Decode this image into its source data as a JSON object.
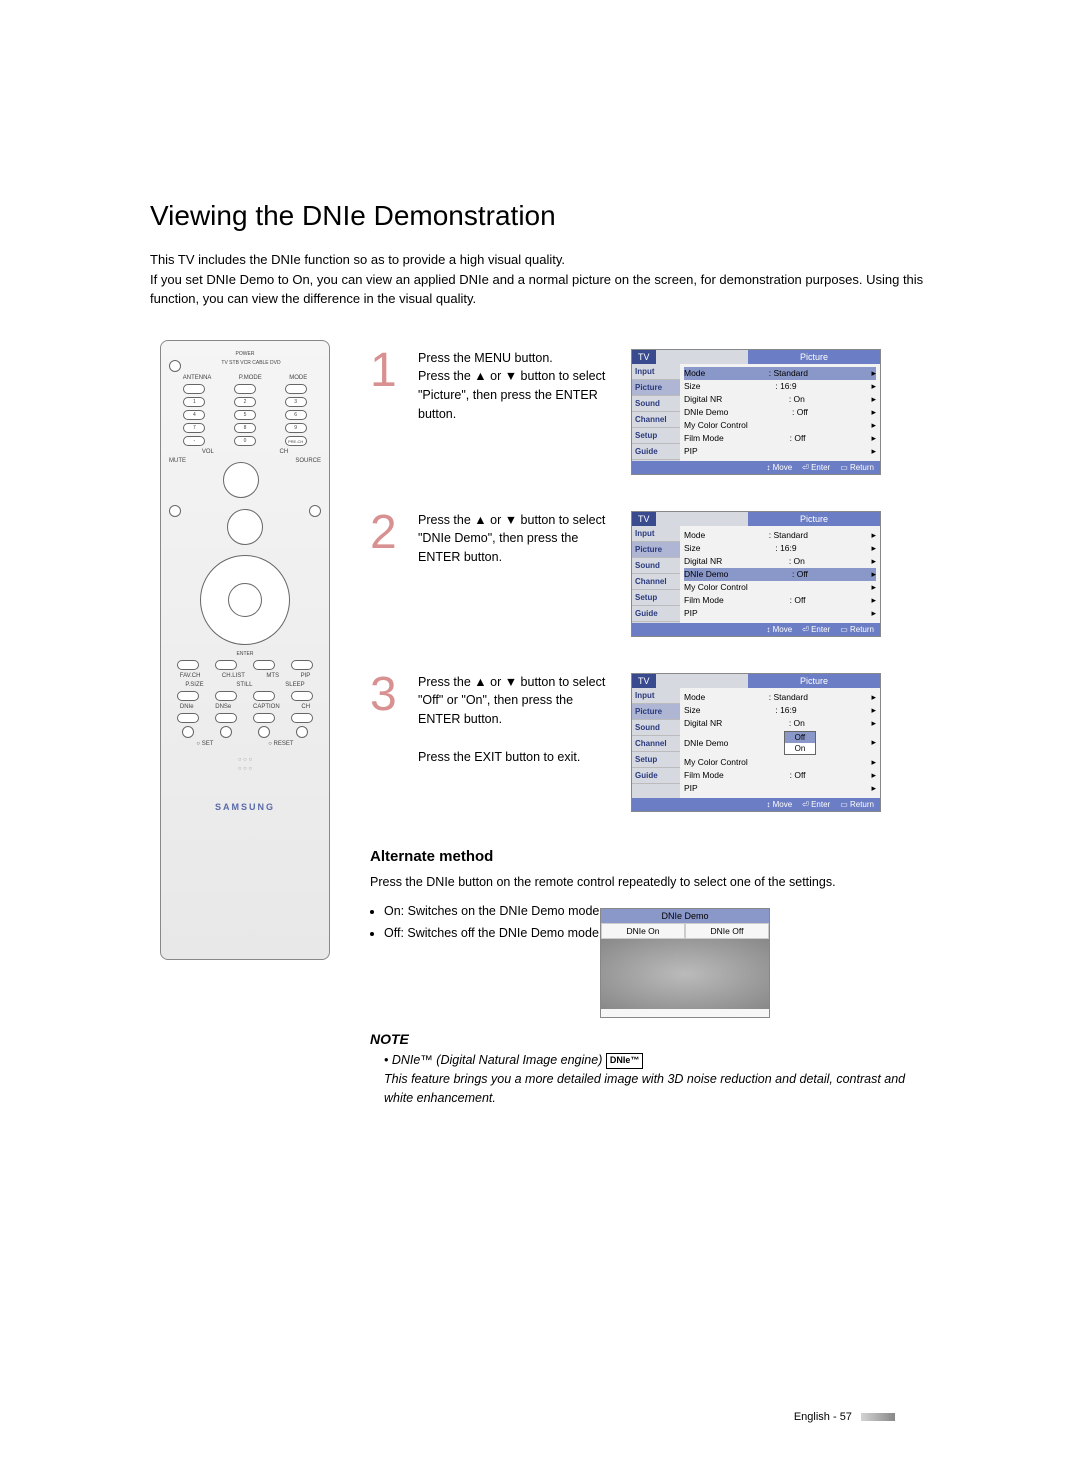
{
  "title": "Viewing the DNIe Demonstration",
  "intro": "This TV includes the DNIe function so as to provide a high visual quality.\nIf you set DNIe Demo to On, you can view an applied DNIe and a normal picture on the screen, for demonstration purposes. Using this function, you can view the difference in the visual quality.",
  "remote": {
    "top_label": "POWER",
    "mode_row": "TV  STB  VCR  CABLE  DVD",
    "row_labels": [
      "ANTENNA",
      "P.MODE",
      "MODE"
    ],
    "numbers": [
      "1",
      "2",
      "3",
      "4",
      "5",
      "6",
      "7",
      "8",
      "9",
      "-",
      "0",
      "PRE-CH"
    ],
    "vol": "VOL",
    "ch": "CH",
    "mute": "MUTE",
    "source": "SOURCE",
    "enter": "ENTER",
    "bottom_row1": [
      "FAV.CH",
      "CH.LIST",
      "MTS",
      "PIP"
    ],
    "bottom_row2": [
      "P.SIZE",
      "STILL",
      "SLEEP"
    ],
    "bottom_row3": [
      "DNIe",
      "DNSe",
      "CAPTION",
      "CH"
    ],
    "set": "SET",
    "reset": "RESET",
    "brand": "SAMSUNG"
  },
  "steps": [
    {
      "num": "1",
      "text": "Press the MENU button.\nPress the ▲ or ▼ button to select \"Picture\", then press the ENTER button.",
      "osd": {
        "corner": "TV",
        "title": "Picture",
        "side": [
          "Input",
          "Picture",
          "Sound",
          "Channel",
          "Setup",
          "Guide"
        ],
        "side_active": 1,
        "highlight": 0,
        "lines": [
          [
            "Mode",
            ": Standard"
          ],
          [
            "Size",
            ": 16:9"
          ],
          [
            "Digital NR",
            ": On"
          ],
          [
            "DNIe Demo",
            ": Off"
          ],
          [
            "My Color Control",
            ""
          ],
          [
            "Film Mode",
            ": Off"
          ],
          [
            "PIP",
            ""
          ]
        ],
        "foot": [
          "Move",
          "Enter",
          "Return"
        ]
      }
    },
    {
      "num": "2",
      "text": "Press the ▲ or ▼ button to select \"DNIe Demo\", then press the ENTER button.",
      "osd": {
        "corner": "TV",
        "title": "Picture",
        "side": [
          "Input",
          "Picture",
          "Sound",
          "Channel",
          "Setup",
          "Guide"
        ],
        "side_active": 1,
        "highlight": 3,
        "lines": [
          [
            "Mode",
            ": Standard"
          ],
          [
            "Size",
            ": 16:9"
          ],
          [
            "Digital NR",
            ": On"
          ],
          [
            "DNIe Demo",
            ": Off"
          ],
          [
            "My Color Control",
            ""
          ],
          [
            "Film Mode",
            ": Off"
          ],
          [
            "PIP",
            ""
          ]
        ],
        "foot": [
          "Move",
          "Enter",
          "Return"
        ]
      }
    },
    {
      "num": "3",
      "text": "Press the ▲ or ▼ button to select \"Off\" or \"On\", then press the ENTER button.\n\nPress the EXIT button to exit.",
      "osd": {
        "corner": "TV",
        "title": "Picture",
        "side": [
          "Input",
          "Picture",
          "Sound",
          "Channel",
          "Setup",
          "Guide"
        ],
        "side_active": 1,
        "highlight": -1,
        "dropdown": {
          "row": 3,
          "options": [
            "Off",
            "On"
          ],
          "sel": 0
        },
        "lines": [
          [
            "Mode",
            ": Standard"
          ],
          [
            "Size",
            ": 16:9"
          ],
          [
            "Digital NR",
            ": On"
          ],
          [
            "DNIe Demo",
            ""
          ],
          [
            "My Color Control",
            ""
          ],
          [
            "Film Mode",
            ": Off"
          ],
          [
            "PIP",
            ""
          ]
        ],
        "foot": [
          "Move",
          "Enter",
          "Return"
        ]
      }
    }
  ],
  "alternate": {
    "head": "Alternate method",
    "text": "Press the DNIe button on the remote control repeatedly to select one of the settings.",
    "bullets": [
      "On: Switches on the DNIe Demo mode.",
      "Off: Switches off the DNIe Demo mode."
    ],
    "box": {
      "title": "DNIe Demo",
      "left": "DNIe On",
      "right": "DNIe Off"
    }
  },
  "note": {
    "head": "NOTE",
    "line1": "• DNIe™ (Digital Natural Image engine)",
    "tag": "DNIe™",
    "line2": "This feature brings you a more detailed image with 3D noise reduction and detail, contrast and white enhancement."
  },
  "footer": {
    "lang": "English",
    "page": "57"
  }
}
